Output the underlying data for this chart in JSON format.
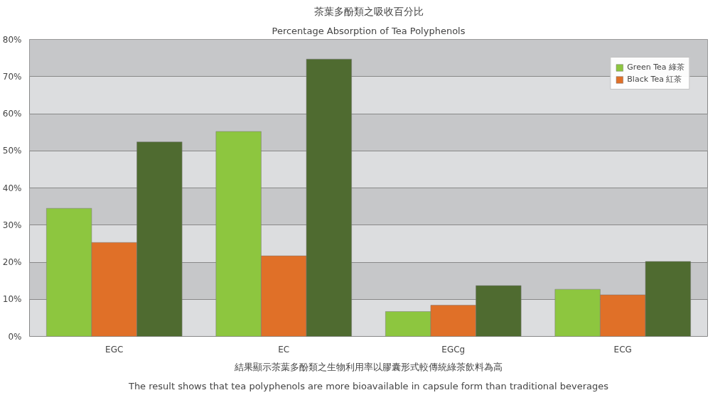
{
  "chart_data": {
    "type": "bar",
    "title": "茶葉多酚類之吸收百分比",
    "subtitle": "Percentage Absorption of Tea Polyphenols",
    "categories": [
      "EGC",
      "EC",
      "EGCg",
      "ECG"
    ],
    "series": [
      {
        "name": "Green Tea 綠茶",
        "color": "#8dc63f",
        "values": [
          34.5,
          55.2,
          6.7,
          12.7
        ]
      },
      {
        "name": "Black Tea 紅茶",
        "color": "#e07028",
        "values": [
          25.3,
          21.7,
          8.4,
          11.2
        ]
      },
      {
        "color": "#4f6b30",
        "values": [
          52.4,
          74.7,
          13.7,
          20.2
        ]
      }
    ],
    "ylim": [
      0,
      80
    ],
    "yticks": [
      {
        "value": 0,
        "label": "0%"
      },
      {
        "value": 10,
        "label": "10%"
      },
      {
        "value": 20,
        "label": "20%"
      },
      {
        "value": 30,
        "label": "30%"
      },
      {
        "value": 40,
        "label": "40%"
      },
      {
        "value": 50,
        "label": "50%"
      },
      {
        "value": 60,
        "label": "60%"
      },
      {
        "value": 70,
        "label": "70%"
      },
      {
        "value": 80,
        "label": "80%"
      }
    ],
    "grid": "y",
    "legend": "top right",
    "annotations": [
      "結果顯示茶葉多酚類之生物利用率以膠囊形式較傳統綠茶飲料為高",
      "The result shows that tea polyphenols are more bioavailable in capsule form than traditional beverages"
    ]
  }
}
